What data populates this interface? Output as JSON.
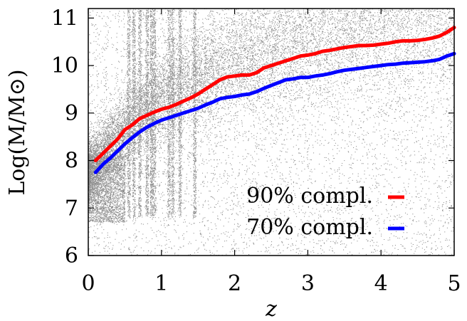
{
  "chart_data": {
    "type": "scatter",
    "title": "",
    "xlabel": "z",
    "ylabel": "Log(M/M⊙)",
    "xlim": [
      0,
      5
    ],
    "ylim": [
      6,
      11.2
    ],
    "x_ticks": [
      "0",
      "1",
      "2",
      "3",
      "4",
      "5"
    ],
    "y_ticks": [
      "6",
      "7",
      "8",
      "9",
      "10",
      "11"
    ],
    "grid": false,
    "legend_position": "bottom-right",
    "scatter_color": "#8c8c8c",
    "series": [
      {
        "name": "90% compl.",
        "color": "#ff0000",
        "x": [
          0.1,
          0.2,
          0.3,
          0.4,
          0.5,
          0.6,
          0.7,
          0.8,
          0.9,
          1.0,
          1.1,
          1.2,
          1.3,
          1.4,
          1.5,
          1.6,
          1.7,
          1.8,
          1.9,
          2.0,
          2.1,
          2.2,
          2.3,
          2.4,
          2.5,
          2.6,
          2.7,
          2.8,
          2.9,
          3.0,
          3.1,
          3.2,
          3.3,
          3.4,
          3.5,
          3.6,
          3.7,
          3.8,
          3.9,
          4.0,
          4.1,
          4.2,
          4.3,
          4.4,
          4.5,
          4.6,
          4.7,
          4.8,
          4.9,
          5.0
        ],
        "values": [
          8.0,
          8.15,
          8.3,
          8.45,
          8.65,
          8.75,
          8.88,
          8.95,
          9.02,
          9.08,
          9.12,
          9.18,
          9.25,
          9.32,
          9.4,
          9.5,
          9.6,
          9.7,
          9.76,
          9.78,
          9.8,
          9.8,
          9.85,
          9.95,
          10.0,
          10.05,
          10.1,
          10.15,
          10.2,
          10.22,
          10.25,
          10.3,
          10.32,
          10.35,
          10.38,
          10.4,
          10.42,
          10.42,
          10.43,
          10.45,
          10.47,
          10.5,
          10.52,
          10.52,
          10.53,
          10.55,
          10.58,
          10.62,
          10.7,
          10.8
        ]
      },
      {
        "name": "70% compl.",
        "color": "#0000ff",
        "x": [
          0.1,
          0.2,
          0.3,
          0.4,
          0.5,
          0.6,
          0.7,
          0.8,
          0.9,
          1.0,
          1.1,
          1.2,
          1.3,
          1.4,
          1.5,
          1.6,
          1.7,
          1.8,
          1.9,
          2.0,
          2.1,
          2.2,
          2.3,
          2.4,
          2.5,
          2.6,
          2.7,
          2.8,
          2.9,
          3.0,
          3.1,
          3.2,
          3.3,
          3.4,
          3.5,
          3.6,
          3.7,
          3.8,
          3.9,
          4.0,
          4.1,
          4.2,
          4.3,
          4.4,
          4.5,
          4.6,
          4.7,
          4.8,
          4.9,
          5.0
        ],
        "values": [
          7.75,
          7.92,
          8.05,
          8.2,
          8.35,
          8.48,
          8.6,
          8.7,
          8.78,
          8.85,
          8.9,
          8.95,
          9.0,
          9.05,
          9.1,
          9.17,
          9.23,
          9.3,
          9.33,
          9.35,
          9.38,
          9.4,
          9.45,
          9.52,
          9.58,
          9.64,
          9.7,
          9.72,
          9.75,
          9.75,
          9.78,
          9.8,
          9.83,
          9.87,
          9.9,
          9.92,
          9.94,
          9.96,
          9.98,
          10.0,
          10.02,
          10.03,
          10.05,
          10.06,
          10.07,
          10.08,
          10.1,
          10.13,
          10.2,
          10.25
        ]
      }
    ]
  }
}
